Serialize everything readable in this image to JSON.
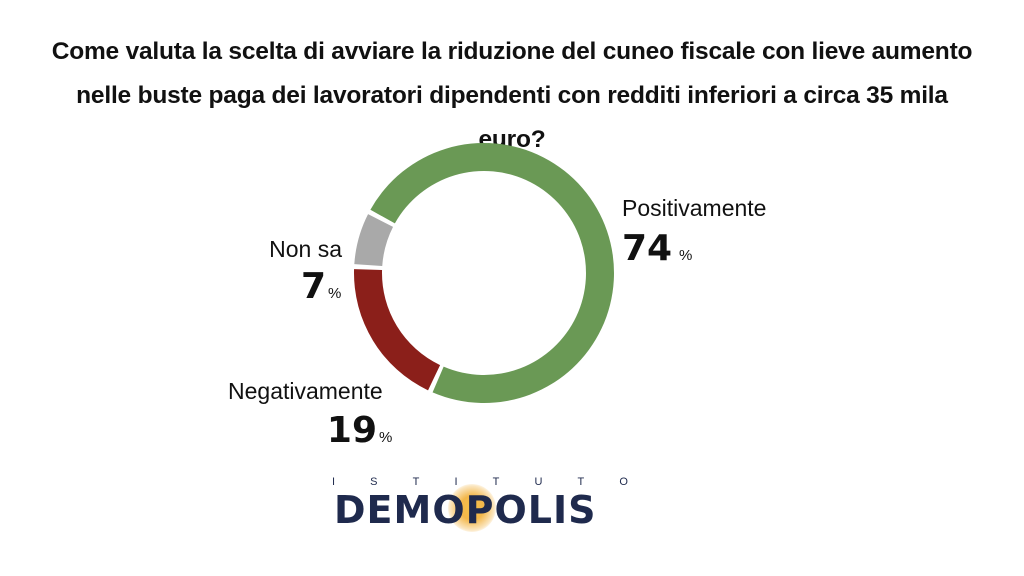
{
  "title_lines": [
    "Come valuta la scelta di avviare la riduzione del cuneo fiscale con lieve aumento",
    "nelle buste paga dei lavoratori dipendenti con redditi inferiori a circa 35 mila euro?"
  ],
  "chart_data": {
    "type": "pie",
    "title": "Come valuta la scelta di avviare la riduzione del cuneo fiscale con lieve aumento nelle buste paga dei lavoratori dipendenti con redditi inferiori a circa 35 mila euro?",
    "categories": [
      "Positivamente",
      "Negativamente",
      "Non sa"
    ],
    "values": [
      74,
      19,
      7
    ],
    "value_labels": [
      "74",
      "19",
      "7"
    ],
    "unit": "%",
    "colors": [
      "#6a9955",
      "#8b1f1a",
      "#a9a9a9"
    ],
    "donut": true,
    "legend": "none"
  },
  "logo": {
    "top_letters": [
      "I",
      "S",
      "T",
      "I",
      "T",
      "U",
      "T",
      "O"
    ],
    "name": "DEMOPOLIS"
  }
}
